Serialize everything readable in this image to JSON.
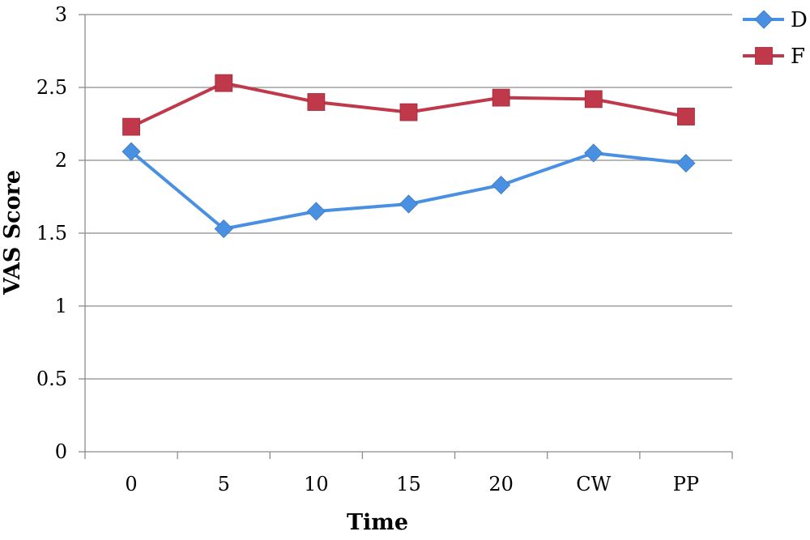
{
  "chart_data": {
    "type": "line",
    "categories": [
      "0",
      "5",
      "10",
      "15",
      "20",
      "CW",
      "PP"
    ],
    "series": [
      {
        "name": "D",
        "color": "#4A90E2",
        "marker": "diamond",
        "values": [
          2.06,
          1.53,
          1.65,
          1.7,
          1.83,
          2.05,
          1.98
        ]
      },
      {
        "name": "F",
        "color": "#C0394B",
        "marker": "square",
        "values": [
          2.23,
          2.53,
          2.4,
          2.33,
          2.43,
          2.42,
          2.3
        ]
      }
    ],
    "xlabel": "Time",
    "ylabel": "VAS Score",
    "ylim": [
      0,
      3
    ],
    "yticks": [
      "0",
      "0.5",
      "1",
      "1.5",
      "2",
      "2.5",
      "3"
    ],
    "grid": true,
    "legend": "top-right"
  }
}
